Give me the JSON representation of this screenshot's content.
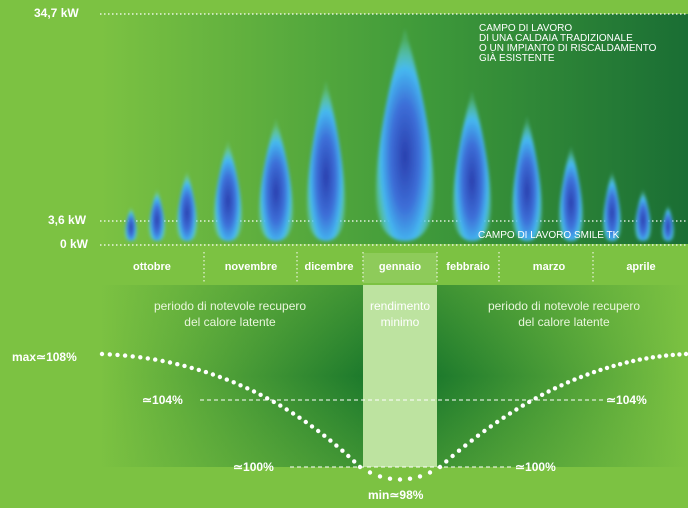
{
  "colors": {
    "background": "#7cc242",
    "dark_green": "#1d7a32",
    "band_green": "#2f8c2a",
    "highlight_column": "#bde3a0",
    "flame_outer": "#5ee0f5",
    "flame_inner": "#2a3fae",
    "text": "#ffffff"
  },
  "axis": {
    "top_label": "34,7 kW",
    "mid_label": "3,6 kW",
    "zero_label": "0 kW"
  },
  "annotations": {
    "traditional_boiler": [
      "CAMPO DI LAVORO",
      "DI UNA CALDAIA TRADIZIONALE",
      "O UN IMPIANTO DI RISCALDAMENTO",
      "GIÀ ESISTENTE"
    ],
    "smile_tk": "CAMPO DI LAVORO SMILE TK"
  },
  "months": [
    "ottobre",
    "novembre",
    "dicembre",
    "gennaio",
    "febbraio",
    "marzo",
    "aprile"
  ],
  "periods": {
    "left": [
      "periodo di notevole recupero",
      "del calore latente"
    ],
    "center": [
      "rendimento",
      "minimo"
    ],
    "right": [
      "periodo di notevole recupero",
      "del calore latente"
    ]
  },
  "efficiency": {
    "max": "max≃108%",
    "min": "min≃98%",
    "p104_left": "≃104%",
    "p104_right": "≃104%",
    "p100_left": "≃100%",
    "p100_right": "≃100%"
  },
  "icons": [
    "flame-icon"
  ]
}
